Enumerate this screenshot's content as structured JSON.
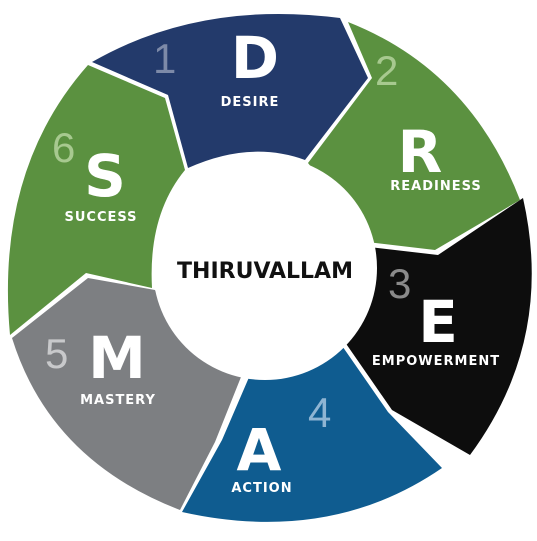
{
  "center_label": "THIRUVALLAM",
  "segments": [
    {
      "number": "1",
      "letter": "D",
      "word": "DESIRE",
      "color": "#233a6b",
      "number_color": "#7d8aa8"
    },
    {
      "number": "2",
      "letter": "R",
      "word": "READINESS",
      "color": "#5b9140",
      "number_color": "#a7c98f"
    },
    {
      "number": "3",
      "letter": "E",
      "word": "EMPOWERMENT",
      "color": "#0d0d0d",
      "number_color": "#8a8a8a"
    },
    {
      "number": "4",
      "letter": "A",
      "word": "ACTION",
      "color": "#0f5c90",
      "number_color": "#8fb5d3"
    },
    {
      "number": "5",
      "letter": "M",
      "word": "MASTERY",
      "color": "#7d7f82",
      "number_color": "#c8c9cb"
    },
    {
      "number": "6",
      "letter": "S",
      "word": "SUCCESS",
      "color": "#5b9140",
      "number_color": "#a7c98f"
    }
  ]
}
